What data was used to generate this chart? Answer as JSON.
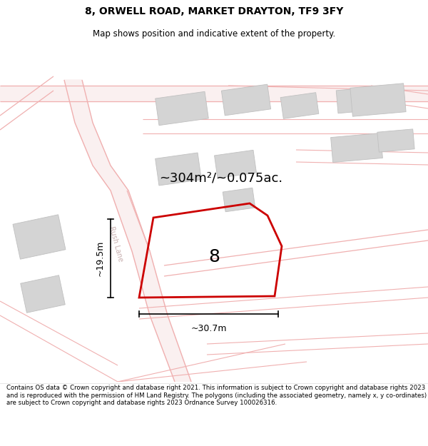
{
  "title": "8, ORWELL ROAD, MARKET DRAYTON, TF9 3FY",
  "subtitle": "Map shows position and indicative extent of the property.",
  "area_label": "~304m²/~0.075ac.",
  "plot_number": "8",
  "dim_width": "~30.7m",
  "dim_height": "~19.5m",
  "road_label": "Rush Lane",
  "footer": "Contains OS data © Crown copyright and database right 2021. This information is subject to Crown copyright and database rights 2023 and is reproduced with the permission of HM Land Registry. The polygons (including the associated geometry, namely x, y co-ordinates) are subject to Crown copyright and database rights 2023 Ordnance Survey 100026316.",
  "title_fontsize": 10,
  "subtitle_fontsize": 8.5,
  "area_fontsize": 13,
  "plot_num_fontsize": 18,
  "dim_fontsize": 9,
  "road_label_fontsize": 7,
  "footer_fontsize": 6.2,
  "road_color": "#f0b0b0",
  "road_fill": "#faf0f0",
  "plot_color": "#cc0000",
  "building_color": "#d4d4d4",
  "building_edge": "#c0c0c0",
  "dim_color": "#404040",
  "road_label_color": "#c8b0b0"
}
